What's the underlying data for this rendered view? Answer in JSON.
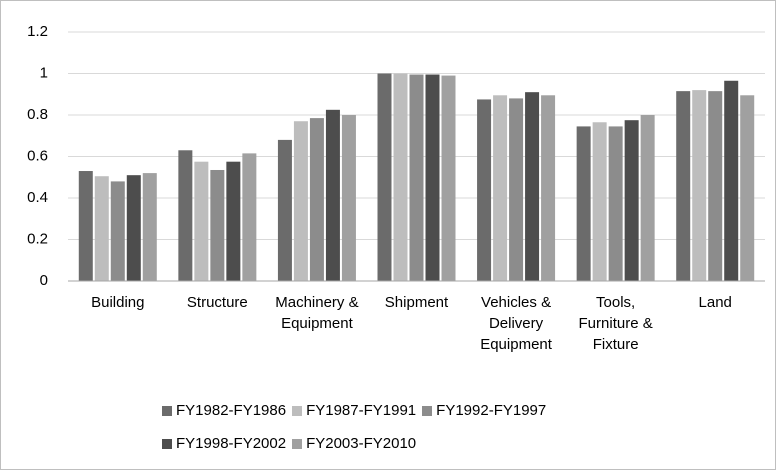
{
  "chart_data": {
    "type": "bar",
    "categories": [
      "Building",
      "Structure",
      "Machinery & Equipment",
      "Shipment",
      "Vehicles & Delivery Equipment",
      "Tools, Furniture & Fixture",
      "Land"
    ],
    "series": [
      {
        "name": "FY1982-FY1986",
        "color": "#6b6b6b",
        "values": [
          0.53,
          0.63,
          0.68,
          1.0,
          0.875,
          0.745,
          0.915
        ]
      },
      {
        "name": "FY1987-FY1991",
        "color": "#bdbdbd",
        "values": [
          0.505,
          0.575,
          0.77,
          1.0,
          0.895,
          0.765,
          0.92
        ]
      },
      {
        "name": "FY1992-FY1997",
        "color": "#8c8c8c",
        "values": [
          0.48,
          0.535,
          0.785,
          0.995,
          0.88,
          0.745,
          0.915
        ]
      },
      {
        "name": "FY1998-FY2002",
        "color": "#4d4d4d",
        "values": [
          0.51,
          0.575,
          0.825,
          0.995,
          0.91,
          0.775,
          0.965
        ]
      },
      {
        "name": "FY2003-FY2010",
        "color": "#a0a0a0",
        "values": [
          0.52,
          0.615,
          0.8,
          0.99,
          0.895,
          0.8,
          0.895
        ]
      }
    ],
    "ylim": [
      0,
      1.2
    ],
    "yticks": [
      0,
      0.2,
      0.4,
      0.6,
      0.8,
      1,
      1.2
    ],
    "grid": true,
    "legend": "bottom"
  }
}
